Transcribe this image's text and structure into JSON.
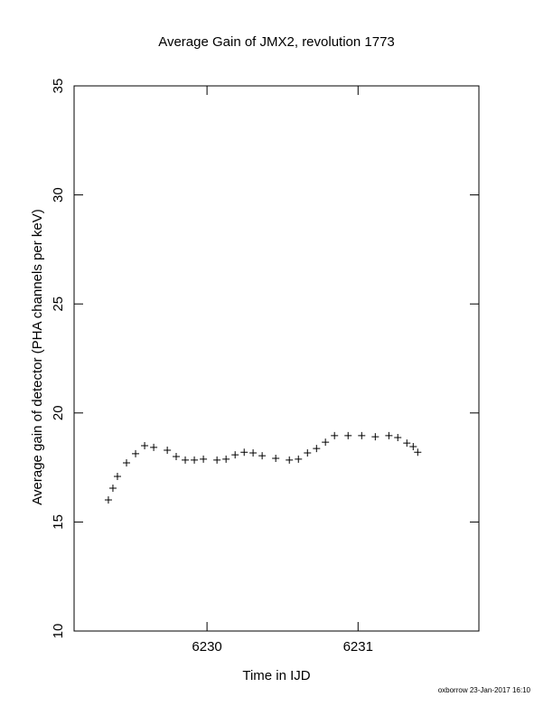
{
  "chart_data": {
    "type": "scatter",
    "title": "Average Gain of JMX2, revolution 1773",
    "x_label": "Time in IJD",
    "y_label": "Average gain of detector (PHA channels per keV)",
    "footer": "oxborrow 23-Jan-2017 16:10",
    "xlim": [
      6229.12,
      6231.8
    ],
    "xticks": [
      6230,
      6231
    ],
    "ylim": [
      10,
      35
    ],
    "yticks": [
      10,
      15,
      20,
      25,
      30,
      35
    ],
    "color": "#000000",
    "x": [
      6229.347,
      6229.377,
      6229.407,
      6229.467,
      6229.527,
      6229.587,
      6229.647,
      6229.737,
      6229.796,
      6229.856,
      6229.916,
      6229.976,
      6230.066,
      6230.126,
      6230.186,
      6230.246,
      6230.305,
      6230.365,
      6230.455,
      6230.545,
      6230.605,
      6230.665,
      6230.725,
      6230.784,
      6230.844,
      6230.934,
      6231.024,
      6231.114,
      6231.204,
      6231.263,
      6231.323,
      6231.365,
      6231.395
    ],
    "values": [
      16.01,
      16.55,
      17.09,
      17.71,
      18.13,
      18.5,
      18.42,
      18.29,
      18.0,
      17.84,
      17.84,
      17.88,
      17.84,
      17.88,
      18.08,
      18.2,
      18.17,
      18.04,
      17.92,
      17.84,
      17.88,
      18.17,
      18.37,
      18.66,
      18.96,
      18.96,
      18.96,
      18.91,
      18.96,
      18.87,
      18.62,
      18.46,
      18.2
    ]
  }
}
